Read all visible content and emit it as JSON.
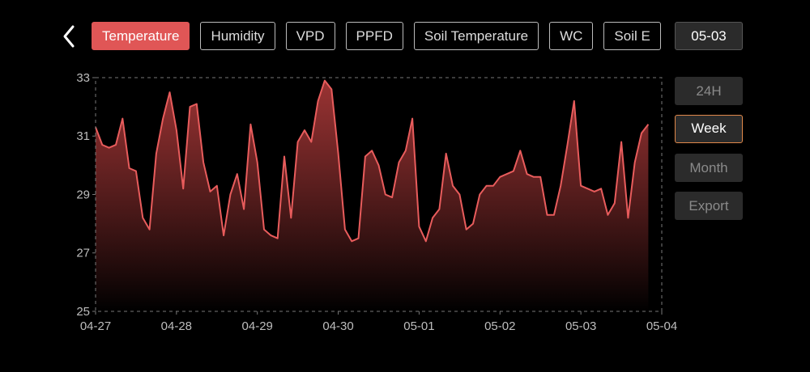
{
  "tabs": [
    "Temperature",
    "Humidity",
    "VPD",
    "PPFD",
    "Soil Temperature",
    "WC",
    "Soil E"
  ],
  "selected_tab": 0,
  "date_button": "05-03",
  "range_buttons": [
    "24H",
    "Week",
    "Month",
    "Export"
  ],
  "selected_range": 1,
  "chart_data": {
    "type": "area",
    "color": "#e85c5c",
    "x": [
      0,
      2,
      4,
      6,
      8,
      10,
      12,
      14,
      16,
      18,
      20,
      22,
      24,
      26,
      28,
      30,
      32,
      34,
      36,
      38,
      40,
      42,
      44,
      46,
      48,
      50,
      52,
      54,
      56,
      58,
      60,
      62,
      64,
      66,
      68,
      70,
      72,
      74,
      76,
      78,
      80,
      82,
      84,
      86,
      88,
      90,
      92,
      94,
      96,
      98,
      100,
      102,
      104,
      106,
      108,
      110,
      112,
      114,
      116,
      118,
      120,
      122,
      124,
      126,
      128,
      130,
      132,
      134,
      136,
      138,
      140,
      142,
      144,
      146,
      148,
      150,
      152,
      154,
      156,
      158,
      160,
      162,
      164
    ],
    "values": [
      31.3,
      30.7,
      30.6,
      30.7,
      31.6,
      29.9,
      29.8,
      28.2,
      27.8,
      30.4,
      31.6,
      32.5,
      31.2,
      29.2,
      32.0,
      32.1,
      30.1,
      29.1,
      29.3,
      27.6,
      29.0,
      29.7,
      28.5,
      31.4,
      30.1,
      27.8,
      27.6,
      27.5,
      30.3,
      28.2,
      30.8,
      31.2,
      30.8,
      32.2,
      32.9,
      32.6,
      30.4,
      27.8,
      27.4,
      27.5,
      30.3,
      30.5,
      30.0,
      29.0,
      28.9,
      30.1,
      30.5,
      31.6,
      27.9,
      27.4,
      28.2,
      28.5,
      30.4,
      29.3,
      29.0,
      27.8,
      28.0,
      29.0,
      29.3,
      29.3,
      29.6,
      29.7,
      29.8,
      30.5,
      29.7,
      29.6,
      29.6,
      28.3,
      28.3,
      29.3,
      30.7,
      32.2,
      29.3,
      29.2,
      29.1,
      29.2,
      28.3,
      28.7,
      30.8,
      28.2,
      30.1,
      31.1,
      31.4
    ],
    "xlim": [
      0,
      168
    ],
    "xticks": [
      {
        "value": 0,
        "label": "04-27"
      },
      {
        "value": 24,
        "label": "04-28"
      },
      {
        "value": 48,
        "label": "04-29"
      },
      {
        "value": 72,
        "label": "04-30"
      },
      {
        "value": 96,
        "label": "05-01"
      },
      {
        "value": 120,
        "label": "05-02"
      },
      {
        "value": 144,
        "label": "05-03"
      },
      {
        "value": 168,
        "label": "05-04"
      }
    ],
    "ylim": [
      25,
      33
    ],
    "yticks": [
      25,
      27,
      29,
      31,
      33
    ]
  }
}
